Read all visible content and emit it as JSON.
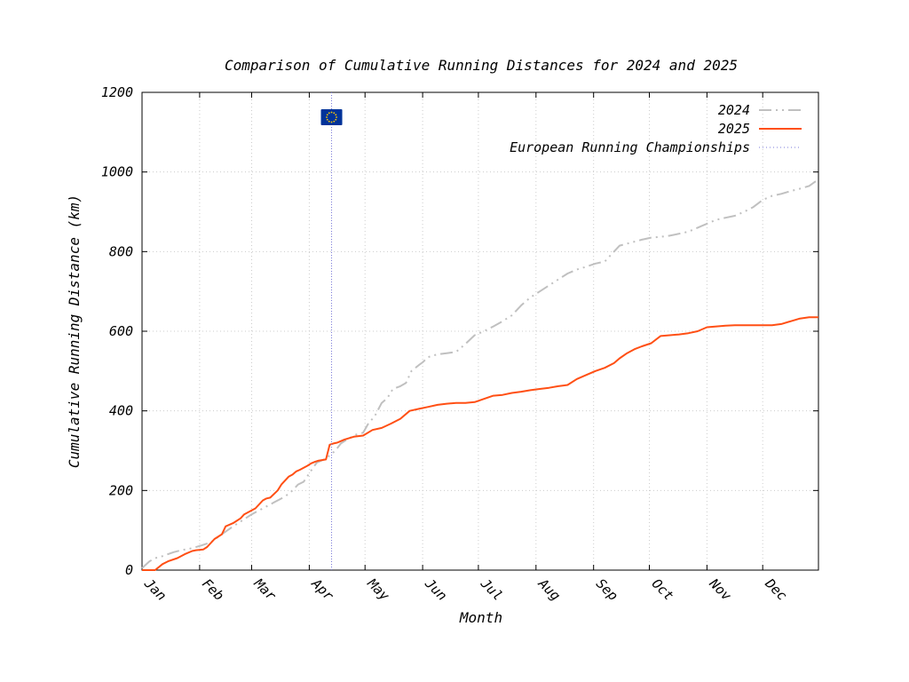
{
  "chart_data": {
    "type": "line",
    "title": "Comparison of Cumulative Running Distances for 2024 and 2025",
    "xlabel": "Month",
    "ylabel": "Cumulative Running Distance (km)",
    "categories": [
      "Jan",
      "Feb",
      "Mar",
      "Apr",
      "May",
      "Jun",
      "Jul",
      "Aug",
      "Sep",
      "Oct",
      "Nov",
      "Dec"
    ],
    "yticks": [
      0,
      200,
      400,
      600,
      800,
      1000,
      1200
    ],
    "ylim": [
      0,
      1200
    ],
    "xlim": [
      1,
      365
    ],
    "grid": true,
    "legend_position": "top-right",
    "series": [
      {
        "name": "2024",
        "color": "#c0c0c0",
        "style": "dash-dot-dot",
        "x": [
          1,
          5,
          8,
          12,
          18,
          22,
          28,
          33,
          38,
          44,
          50,
          55,
          60,
          66,
          72,
          78,
          82,
          85,
          88,
          92,
          95,
          100,
          105,
          108,
          112,
          116,
          120,
          123,
          126,
          130,
          133,
          136,
          140,
          143,
          146,
          150,
          152,
          155,
          160,
          165,
          170,
          175,
          180,
          185,
          190,
          195,
          200,
          205,
          210,
          215,
          220,
          225,
          230,
          235,
          240,
          245,
          250,
          255,
          258,
          262,
          266,
          270,
          275,
          280,
          285,
          290,
          295,
          300,
          305,
          310,
          315,
          320,
          325,
          330,
          335,
          340,
          345,
          350,
          355,
          360,
          363,
          365
        ],
        "values": [
          5,
          22,
          30,
          35,
          45,
          50,
          55,
          62,
          70,
          90,
          110,
          125,
          140,
          155,
          170,
          185,
          200,
          215,
          222,
          250,
          270,
          280,
          300,
          318,
          330,
          340,
          345,
          370,
          385,
          420,
          432,
          455,
          462,
          470,
          500,
          515,
          522,
          535,
          542,
          545,
          548,
          568,
          590,
          600,
          612,
          625,
          640,
          665,
          685,
          700,
          715,
          730,
          745,
          755,
          762,
          770,
          775,
          800,
          815,
          820,
          825,
          830,
          835,
          837,
          840,
          845,
          850,
          860,
          870,
          880,
          885,
          890,
          900,
          912,
          930,
          940,
          945,
          952,
          958,
          965,
          975,
          980
        ]
      },
      {
        "name": "2025",
        "color": "#ff4f14",
        "style": "solid",
        "x": [
          1,
          8,
          12,
          15,
          20,
          24,
          28,
          30,
          34,
          36,
          40,
          44,
          46,
          50,
          54,
          56,
          58,
          62,
          66,
          68,
          70,
          74,
          76,
          80,
          82,
          84,
          86,
          90,
          92,
          94,
          96,
          100,
          102,
          104,
          106,
          110,
          115,
          120,
          125,
          130,
          135,
          140,
          145,
          150,
          155,
          160,
          165,
          170,
          175,
          180,
          185,
          190,
          195,
          200,
          205,
          210,
          215,
          220,
          225,
          230,
          235,
          240,
          245,
          250,
          255,
          258,
          262,
          266,
          270,
          275,
          280,
          285,
          290,
          295,
          300,
          305,
          310,
          315,
          320,
          325,
          330,
          335,
          340,
          345,
          350,
          355,
          360,
          365
        ],
        "values": [
          0,
          0,
          15,
          22,
          30,
          40,
          48,
          50,
          52,
          58,
          78,
          90,
          110,
          118,
          130,
          140,
          145,
          155,
          175,
          180,
          182,
          200,
          215,
          235,
          240,
          248,
          252,
          262,
          268,
          272,
          275,
          278,
          315,
          318,
          320,
          328,
          335,
          338,
          352,
          357,
          368,
          380,
          400,
          405,
          410,
          415,
          418,
          420,
          420,
          422,
          430,
          438,
          440,
          445,
          448,
          452,
          455,
          458,
          462,
          465,
          480,
          490,
          500,
          508,
          520,
          532,
          545,
          555,
          562,
          570,
          588,
          590,
          592,
          595,
          600,
          610,
          612,
          614,
          615,
          615,
          615,
          615,
          615,
          618,
          625,
          632,
          635,
          635
        ]
      }
    ],
    "annotations": [
      {
        "label": "European Running Championships",
        "x": 103,
        "color": "#7a7ad8",
        "style": "dotted",
        "icon": "eu-flag-icon"
      }
    ]
  }
}
